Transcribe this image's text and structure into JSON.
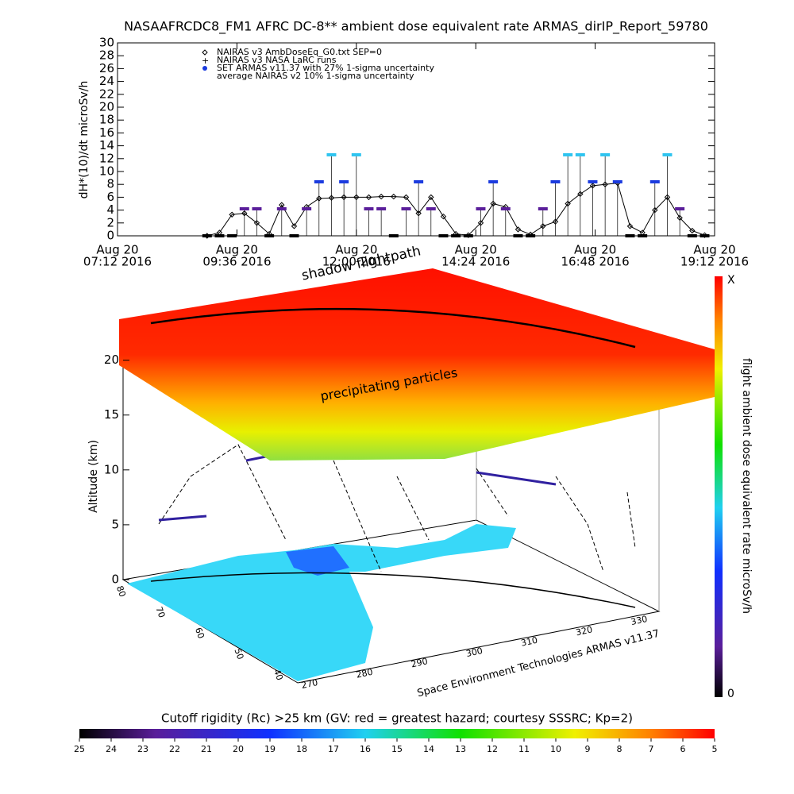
{
  "chart_data": {
    "type": "line",
    "title": "NASAAFRCDC8_FM1 AFRC DC-8** ambient dose equivalent rate ARMAS_dirIP_Report_59780",
    "ylabel": "dH*(10)/dt microSv/h",
    "x": [
      9.0,
      9.25,
      9.5,
      9.75,
      10.0,
      10.25,
      10.5,
      10.75,
      11.0,
      11.25,
      11.5,
      11.75,
      12.0,
      12.25,
      12.5,
      12.75,
      13.0,
      13.25,
      13.5,
      13.75,
      14.0,
      14.25,
      14.5,
      14.75,
      15.0,
      15.25,
      15.5,
      15.75,
      16.0,
      16.25,
      16.5,
      16.75,
      17.0,
      17.25,
      17.5,
      17.75,
      18.0,
      18.25,
      18.5,
      18.75,
      19.0
    ],
    "series": [
      {
        "name": "NAIRAS v3 AmbDoseEq_G0.txt SEP=0",
        "color": "#000000",
        "values": [
          0,
          0.5,
          3.3,
          3.5,
          2.0,
          0.3,
          4.8,
          1.5,
          4.5,
          5.8,
          5.9,
          6.0,
          6.0,
          6.0,
          6.1,
          6.1,
          6.0,
          3.5,
          6.0,
          3.0,
          0.3,
          0.1,
          2.0,
          5.0,
          4.5,
          1.0,
          0.2,
          1.5,
          2.2,
          5.0,
          6.5,
          7.8,
          8.0,
          8.2,
          1.5,
          0.5,
          4.0,
          6.0,
          2.8,
          0.8,
          0.1
        ]
      },
      {
        "name": "SET ARMAS v11.37 with 27% 1-sigma uncertainty",
        "color": "#1a3adf",
        "values": [
          0,
          0,
          0,
          4.2,
          4.2,
          0,
          4.2,
          0,
          4.2,
          8.4,
          12.6,
          8.4,
          12.6,
          4.2,
          4.2,
          0,
          4.2,
          8.4,
          4.2,
          0,
          0,
          0,
          4.2,
          8.4,
          4.2,
          0,
          0,
          4.2,
          8.4,
          12.6,
          12.6,
          8.4,
          12.6,
          8.4,
          0,
          0,
          8.4,
          12.6,
          4.2,
          0,
          0
        ],
        "colors": [
          "#000000",
          "#000000",
          "#000000",
          "#5a1e9a",
          "#5a1e9a",
          "#000000",
          "#5a1e9a",
          "#000000",
          "#5a1e9a",
          "#1a3adf",
          "#2ec4f0",
          "#1a3adf",
          "#2ec4f0",
          "#5a1e9a",
          "#5a1e9a",
          "#000000",
          "#5a1e9a",
          "#1a3adf",
          "#5a1e9a",
          "#000000",
          "#000000",
          "#000000",
          "#5a1e9a",
          "#1a3adf",
          "#5a1e9a",
          "#000000",
          "#000000",
          "#5a1e9a",
          "#1a3adf",
          "#2ec4f0",
          "#2ec4f0",
          "#1a3adf",
          "#2ec4f0",
          "#1a3adf",
          "#000000",
          "#000000",
          "#1a3adf",
          "#2ec4f0",
          "#5a1e9a",
          "#000000",
          "#000000"
        ]
      }
    ],
    "notes": [
      "NAIRAS v3 NASA LaRC runs",
      "average NAIRAS v2 10% 1-sigma uncertainty"
    ],
    "xlim": [
      7.2,
      19.2
    ],
    "xticks": [
      {
        "value": 7.2,
        "label": [
          "Aug 20",
          "07:12 2016"
        ]
      },
      {
        "value": 9.6,
        "label": [
          "Aug 20",
          "09:36 2016"
        ]
      },
      {
        "value": 12.0,
        "label": [
          "Aug 20",
          "12:00 2016"
        ]
      },
      {
        "value": 14.4,
        "label": [
          "Aug 20",
          "14:24 2016"
        ]
      },
      {
        "value": 16.8,
        "label": [
          "Aug 20",
          "16:48 2016"
        ]
      },
      {
        "value": 19.2,
        "label": [
          "Aug 20",
          "19:12 2016"
        ]
      }
    ],
    "ylim": [
      0,
      30
    ],
    "yticks": [
      0,
      2,
      4,
      6,
      8,
      10,
      12,
      14,
      16,
      18,
      20,
      22,
      24,
      26,
      28,
      30
    ]
  },
  "panel3d": {
    "annotations": [
      "shadow flightpath",
      "precipitating particles",
      "Space Environment Technologies ARMAS v11.37"
    ],
    "zlabel": "Altitude (km)",
    "zlim": [
      0,
      22
    ],
    "zticks": [
      0,
      5,
      10,
      15,
      20
    ],
    "latticks": [
      80,
      70,
      60,
      50,
      40
    ],
    "lonticks": [
      270,
      280,
      290,
      300,
      310,
      320,
      330
    ]
  },
  "dose_colorbar": {
    "title": "flight ambient dose equivalent rate microSv/h",
    "labels": [
      "X",
      "0"
    ]
  },
  "rigidity_colorbar": {
    "title": "Cutoff rigidity (Rc) >25 km (GV: red = greatest hazard; courtesy SSSRC; Kp=2)",
    "clim": [
      25,
      5
    ],
    "ticks": [
      25,
      24,
      23,
      22,
      21,
      20,
      19,
      18,
      17,
      16,
      15,
      14,
      13,
      12,
      11,
      10,
      9,
      8,
      7,
      6,
      5
    ]
  }
}
